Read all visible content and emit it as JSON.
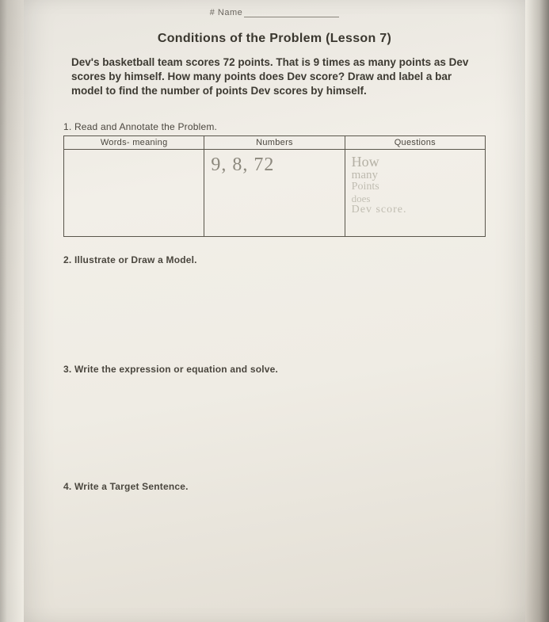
{
  "header": {
    "name_label": "# Name"
  },
  "title": "Conditions of the Problem (Lesson 7)",
  "problem_text": "Dev's basketball team scores 72 points. That is 9 times as many points as Dev scores by himself. How many points does Dev score? Draw and label a bar model to find the number of points Dev scores by himself.",
  "sections": {
    "s1": "1. Read and Annotate the Problem.",
    "s2": "2. Illustrate or Draw a Model.",
    "s3": "3. Write the expression or equation and solve.",
    "s4": "4. Write a Target Sentence."
  },
  "table": {
    "columns": [
      "Words- meaning",
      "Numbers",
      "Questions"
    ],
    "handwritten_numbers": "9, 8, 72",
    "handwritten_question_l1": "How",
    "handwritten_question_l2": "many",
    "handwritten_question_l3": "Points",
    "handwritten_question_l4": "does",
    "handwritten_question_l5": "Dev score."
  },
  "style": {
    "paper_bg": "#efece4",
    "text_color": "#3a372f",
    "border_color": "#5a564c",
    "handwriting_color": "#7a766a"
  }
}
